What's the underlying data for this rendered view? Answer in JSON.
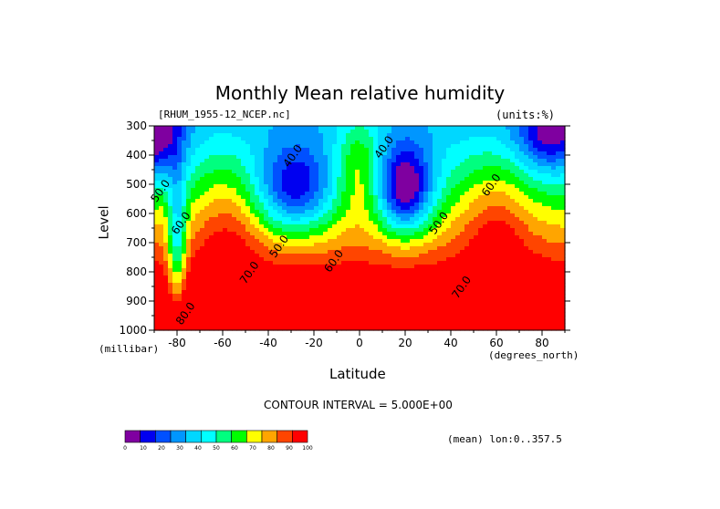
{
  "chart_data": {
    "type": "heatmap",
    "title": "Monthly Mean relative humidity",
    "file_label": "[RHUM_1955-12_NCEP.nc]",
    "units_label": "(units:%)",
    "xlabel": "Latitude",
    "x_units": "(degrees_north)",
    "ylabel": "Level",
    "y_units": "(millibar)",
    "xlim": [
      -90,
      90
    ],
    "ylim": [
      1000,
      300
    ],
    "x_ticks": [
      -80,
      -60,
      -40,
      -20,
      0,
      20,
      40,
      60,
      80
    ],
    "y_ticks": [
      300,
      400,
      500,
      600,
      700,
      800,
      900,
      1000
    ],
    "contour_interval_label": "CONTOUR INTERVAL = 5.000E+00",
    "mean_label": "(mean) lon:0..357.5",
    "contour_labels": [
      {
        "text": "40.0",
        "lat": -28,
        "level": 410
      },
      {
        "text": "40.0",
        "lat": 12,
        "level": 380
      },
      {
        "text": "60.0",
        "lat": 59,
        "level": 510
      },
      {
        "text": "50.0",
        "lat": -86,
        "level": 530
      },
      {
        "text": "60.0",
        "lat": -77,
        "level": 640
      },
      {
        "text": "50.0",
        "lat": 36,
        "level": 640
      },
      {
        "text": "50.0",
        "lat": -34,
        "level": 720
      },
      {
        "text": "60.0",
        "lat": -10,
        "level": 770
      },
      {
        "text": "70.0",
        "lat": -47,
        "level": 810
      },
      {
        "text": "70.0",
        "lat": 46,
        "level": 860
      },
      {
        "text": "80.0",
        "lat": -75,
        "level": 950
      }
    ],
    "colorbar": {
      "ticks": [
        0,
        10,
        20,
        30,
        40,
        50,
        60,
        70,
        80,
        90,
        100
      ],
      "colors": [
        "#7f00a0",
        "#0000f0",
        "#0050ff",
        "#0096ff",
        "#00d7ff",
        "#00ffff",
        "#00ff7f",
        "#00ff00",
        "#ffff00",
        "#ffa500",
        "#ff4500",
        "#ff0000"
      ]
    },
    "grid": false
  }
}
